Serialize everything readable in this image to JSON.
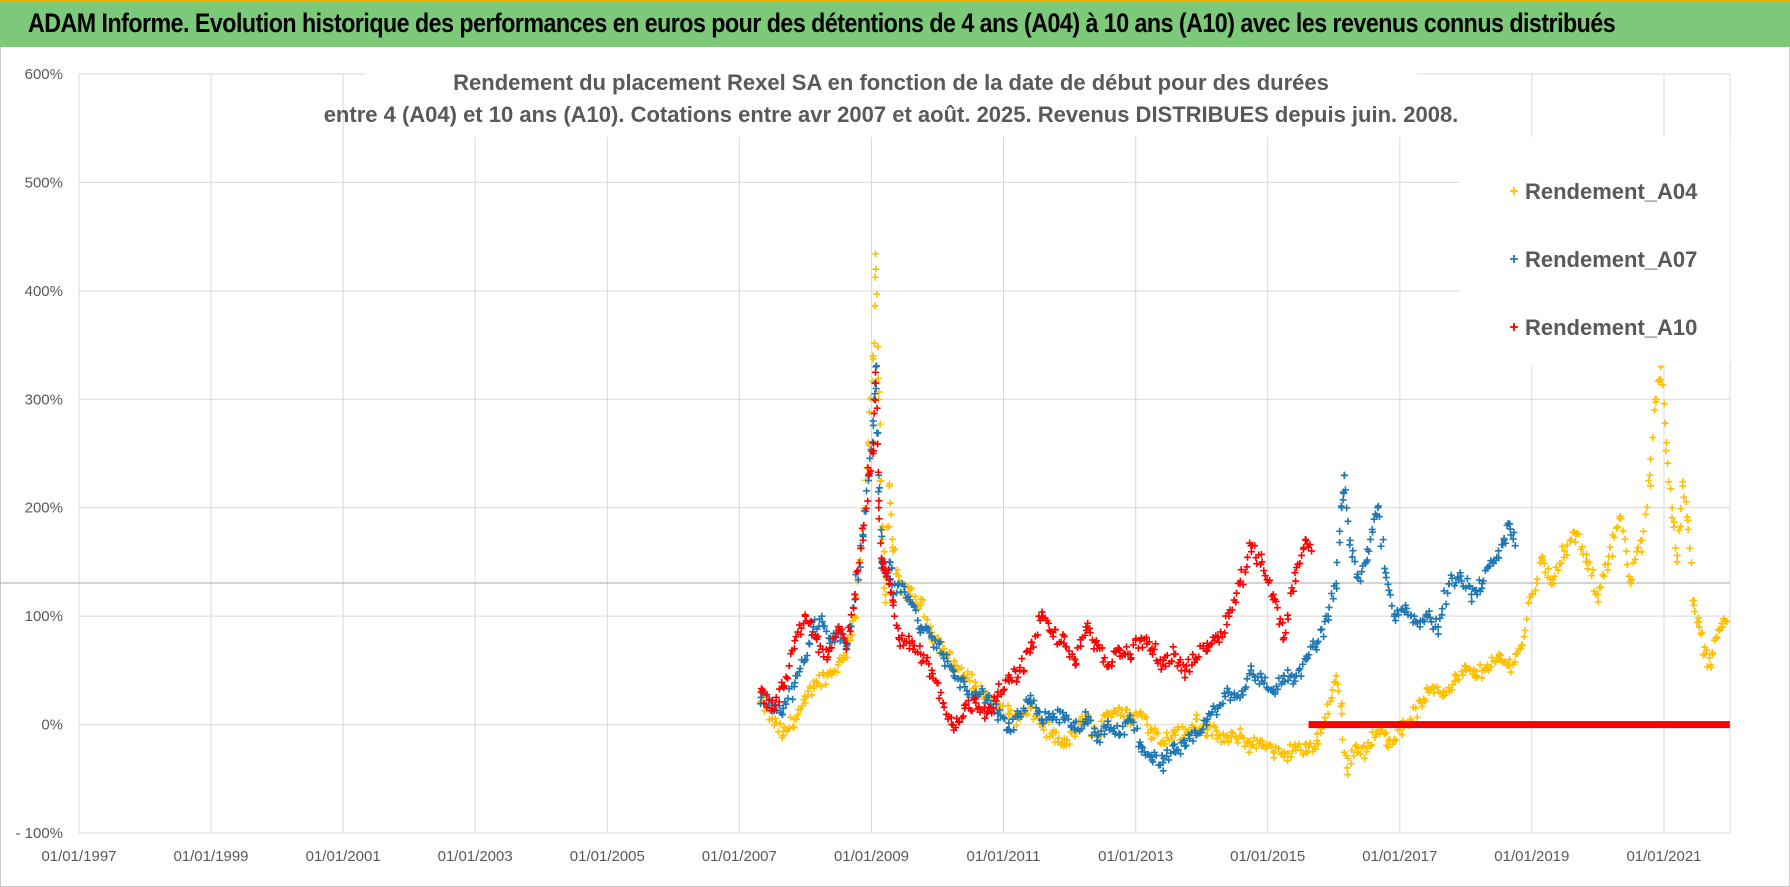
{
  "banner": {
    "title": "ADAM Informe. Evolution historique des performances en euros pour des détentions de 4 ans (A04) à 10 ans (A10) avec les revenus connus distribués"
  },
  "chart_data": {
    "type": "scatter",
    "title_lines": [
      "Rendement du placement Rexel SA en fonction de la date de début pour des durées",
      "entre 4 (A04) et 10 ans (A10).  Cotations entre avr 2007 et août. 2025. Revenus DISTRIBUES depuis juin. 2008."
    ],
    "x_ticks": [
      "01/01/1997",
      "01/01/1999",
      "01/01/2001",
      "01/01/2003",
      "01/01/2005",
      "01/01/2007",
      "01/01/2009",
      "01/01/2011",
      "01/01/2013",
      "01/01/2015",
      "01/01/2017",
      "01/01/2019",
      "01/01/2021"
    ],
    "y_ticks": [
      "- 100%",
      "0%",
      "100%",
      "200%",
      "300%",
      "400%",
      "500%",
      "600%"
    ],
    "xlim": [
      "01/01/1997",
      "01/01/2022"
    ],
    "ylim": [
      -100,
      600
    ],
    "grid": true,
    "legend_position": "right",
    "series": [
      {
        "name": "Rendement_A04",
        "color": "#ffc000",
        "points": [
          [
            "2007-05-01",
            20
          ],
          [
            "2007-07-01",
            5
          ],
          [
            "2007-09-01",
            -10
          ],
          [
            "2007-11-01",
            5
          ],
          [
            "2008-01-01",
            20
          ],
          [
            "2008-03-01",
            40
          ],
          [
            "2008-05-01",
            45
          ],
          [
            "2008-07-01",
            55
          ],
          [
            "2008-08-15",
            70
          ],
          [
            "2008-10-01",
            100
          ],
          [
            "2008-11-15",
            180
          ],
          [
            "2008-12-15",
            260
          ],
          [
            "2009-01-10",
            340
          ],
          [
            "2009-01-25",
            420
          ],
          [
            "2009-02-10",
            300
          ],
          [
            "2009-03-01",
            180
          ],
          [
            "2009-03-20",
            120
          ],
          [
            "2009-04-10",
            220
          ],
          [
            "2009-05-01",
            160
          ],
          [
            "2009-06-01",
            130
          ],
          [
            "2009-08-01",
            120
          ],
          [
            "2009-10-01",
            110
          ],
          [
            "2009-12-01",
            85
          ],
          [
            "2010-02-01",
            70
          ],
          [
            "2010-04-01",
            55
          ],
          [
            "2010-06-01",
            45
          ],
          [
            "2010-08-01",
            35
          ],
          [
            "2010-10-01",
            25
          ],
          [
            "2010-12-01",
            15
          ],
          [
            "2011-02-01",
            10
          ],
          [
            "2011-04-01",
            5
          ],
          [
            "2011-06-01",
            15
          ],
          [
            "2011-08-01",
            0
          ],
          [
            "2011-10-01",
            -10
          ],
          [
            "2011-12-01",
            -20
          ],
          [
            "2012-02-01",
            -5
          ],
          [
            "2012-04-01",
            5
          ],
          [
            "2012-06-01",
            -10
          ],
          [
            "2012-08-01",
            10
          ],
          [
            "2012-10-01",
            15
          ],
          [
            "2012-12-01",
            5
          ],
          [
            "2013-02-01",
            10
          ],
          [
            "2013-04-01",
            -5
          ],
          [
            "2013-06-01",
            -15
          ],
          [
            "2013-08-01",
            -5
          ],
          [
            "2013-10-01",
            -10
          ],
          [
            "2013-12-01",
            5
          ],
          [
            "2014-02-01",
            -5
          ],
          [
            "2014-04-01",
            -10
          ],
          [
            "2014-06-01",
            -15
          ],
          [
            "2014-08-01",
            -10
          ],
          [
            "2014-10-01",
            -20
          ],
          [
            "2014-12-01",
            -15
          ],
          [
            "2015-02-01",
            -25
          ],
          [
            "2015-04-01",
            -30
          ],
          [
            "2015-06-01",
            -20
          ],
          [
            "2015-08-01",
            -25
          ],
          [
            "2015-10-01",
            -15
          ],
          [
            "2015-12-01",
            10
          ],
          [
            "2016-01-15",
            45
          ],
          [
            "2016-02-15",
            10
          ],
          [
            "2016-03-15",
            -40
          ],
          [
            "2016-05-01",
            -20
          ],
          [
            "2016-07-01",
            -25
          ],
          [
            "2016-09-01",
            -5
          ],
          [
            "2016-11-01",
            -15
          ],
          [
            "2017-01-01",
            -5
          ],
          [
            "2017-03-01",
            5
          ],
          [
            "2017-05-01",
            20
          ],
          [
            "2017-07-01",
            35
          ],
          [
            "2017-09-01",
            30
          ],
          [
            "2017-11-01",
            40
          ],
          [
            "2018-01-01",
            50
          ],
          [
            "2018-03-01",
            45
          ],
          [
            "2018-05-01",
            55
          ],
          [
            "2018-07-01",
            60
          ],
          [
            "2018-09-01",
            55
          ],
          [
            "2018-11-01",
            70
          ],
          [
            "2019-01-01",
            120
          ],
          [
            "2019-03-01",
            155
          ],
          [
            "2019-05-01",
            130
          ],
          [
            "2019-07-01",
            160
          ],
          [
            "2019-09-01",
            175
          ],
          [
            "2019-11-01",
            150
          ],
          [
            "2020-01-01",
            120
          ],
          [
            "2020-03-01",
            155
          ],
          [
            "2020-05-01",
            190
          ],
          [
            "2020-07-01",
            130
          ],
          [
            "2020-09-01",
            170
          ],
          [
            "2020-10-15",
            230
          ],
          [
            "2020-11-15",
            300
          ],
          [
            "2020-12-15",
            330
          ],
          [
            "2021-01-15",
            260
          ],
          [
            "2021-02-15",
            200
          ],
          [
            "2021-03-15",
            150
          ],
          [
            "2021-04-15",
            220
          ],
          [
            "2021-05-15",
            180
          ],
          [
            "2021-06-15",
            110
          ],
          [
            "2021-07-15",
            90
          ],
          [
            "2021-08-15",
            65
          ],
          [
            "2021-09-15",
            55
          ],
          [
            "2021-10-15",
            80
          ],
          [
            "2021-11-15",
            90
          ],
          [
            "2021-12-15",
            95
          ]
        ]
      },
      {
        "name": "Rendement_A07",
        "color": "#1f77b4",
        "points": [
          [
            "2007-05-01",
            25
          ],
          [
            "2007-07-01",
            20
          ],
          [
            "2007-09-01",
            15
          ],
          [
            "2007-11-01",
            35
          ],
          [
            "2008-01-01",
            60
          ],
          [
            "2008-02-15",
            90
          ],
          [
            "2008-04-01",
            100
          ],
          [
            "2008-05-15",
            75
          ],
          [
            "2008-07-01",
            85
          ],
          [
            "2008-08-15",
            70
          ],
          [
            "2008-10-01",
            120
          ],
          [
            "2008-11-15",
            175
          ],
          [
            "2008-12-15",
            225
          ],
          [
            "2009-01-10",
            280
          ],
          [
            "2009-01-25",
            330
          ],
          [
            "2009-02-10",
            230
          ],
          [
            "2009-03-01",
            150
          ],
          [
            "2009-03-20",
            140
          ],
          [
            "2009-04-10",
            150
          ],
          [
            "2009-05-01",
            120
          ],
          [
            "2009-06-01",
            130
          ],
          [
            "2009-08-01",
            115
          ],
          [
            "2009-10-01",
            90
          ],
          [
            "2009-12-01",
            80
          ],
          [
            "2010-02-01",
            65
          ],
          [
            "2010-04-01",
            45
          ],
          [
            "2010-06-01",
            35
          ],
          [
            "2010-08-01",
            30
          ],
          [
            "2010-10-01",
            25
          ],
          [
            "2010-12-01",
            10
          ],
          [
            "2011-02-01",
            -5
          ],
          [
            "2011-04-01",
            10
          ],
          [
            "2011-06-01",
            20
          ],
          [
            "2011-08-01",
            5
          ],
          [
            "2011-10-01",
            10
          ],
          [
            "2011-12-01",
            5
          ],
          [
            "2012-02-01",
            -5
          ],
          [
            "2012-04-01",
            5
          ],
          [
            "2012-06-01",
            -15
          ],
          [
            "2012-08-01",
            0
          ],
          [
            "2012-10-01",
            -10
          ],
          [
            "2012-12-01",
            5
          ],
          [
            "2013-02-01",
            -20
          ],
          [
            "2013-04-01",
            -30
          ],
          [
            "2013-06-01",
            -35
          ],
          [
            "2013-08-01",
            -25
          ],
          [
            "2013-10-01",
            -20
          ],
          [
            "2013-12-01",
            -10
          ],
          [
            "2014-02-01",
            5
          ],
          [
            "2014-04-01",
            15
          ],
          [
            "2014-06-01",
            30
          ],
          [
            "2014-08-01",
            25
          ],
          [
            "2014-10-01",
            50
          ],
          [
            "2014-12-01",
            40
          ],
          [
            "2015-02-01",
            30
          ],
          [
            "2015-04-01",
            45
          ],
          [
            "2015-06-01",
            40
          ],
          [
            "2015-08-01",
            60
          ],
          [
            "2015-10-01",
            75
          ],
          [
            "2015-12-01",
            100
          ],
          [
            "2016-01-15",
            130
          ],
          [
            "2016-02-15",
            200
          ],
          [
            "2016-03-01",
            230
          ],
          [
            "2016-04-01",
            170
          ],
          [
            "2016-05-15",
            135
          ],
          [
            "2016-07-01",
            150
          ],
          [
            "2016-08-01",
            180
          ],
          [
            "2016-09-01",
            200
          ],
          [
            "2016-10-15",
            140
          ],
          [
            "2016-12-01",
            100
          ],
          [
            "2017-02-01",
            110
          ],
          [
            "2017-04-01",
            95
          ],
          [
            "2017-06-01",
            100
          ],
          [
            "2017-08-01",
            90
          ],
          [
            "2017-10-01",
            130
          ],
          [
            "2017-12-01",
            140
          ],
          [
            "2018-02-01",
            120
          ],
          [
            "2018-04-01",
            130
          ],
          [
            "2018-06-01",
            150
          ],
          [
            "2018-08-01",
            170
          ],
          [
            "2018-09-01",
            185
          ],
          [
            "2018-10-01",
            165
          ]
        ]
      },
      {
        "name": "Rendement_A10",
        "color": "#ff0000",
        "points": [
          [
            "2007-05-01",
            30
          ],
          [
            "2007-07-01",
            15
          ],
          [
            "2007-09-01",
            35
          ],
          [
            "2007-11-01",
            70
          ],
          [
            "2008-01-01",
            100
          ],
          [
            "2008-03-01",
            80
          ],
          [
            "2008-05-01",
            60
          ],
          [
            "2008-07-01",
            90
          ],
          [
            "2008-08-15",
            75
          ],
          [
            "2008-10-01",
            120
          ],
          [
            "2008-11-15",
            170
          ],
          [
            "2008-12-15",
            230
          ],
          [
            "2009-01-10",
            250
          ],
          [
            "2009-01-25",
            315
          ],
          [
            "2009-02-10",
            200
          ],
          [
            "2009-03-01",
            150
          ],
          [
            "2009-03-20",
            140
          ],
          [
            "2009-04-10",
            130
          ],
          [
            "2009-05-01",
            110
          ],
          [
            "2009-06-01",
            80
          ],
          [
            "2009-08-01",
            75
          ],
          [
            "2009-10-01",
            65
          ],
          [
            "2009-12-01",
            50
          ],
          [
            "2010-02-01",
            20
          ],
          [
            "2010-04-01",
            -5
          ],
          [
            "2010-06-01",
            15
          ],
          [
            "2010-08-01",
            20
          ],
          [
            "2010-10-01",
            10
          ],
          [
            "2010-12-01",
            30
          ],
          [
            "2011-02-01",
            40
          ],
          [
            "2011-04-01",
            50
          ],
          [
            "2011-06-01",
            70
          ],
          [
            "2011-08-01",
            100
          ],
          [
            "2011-10-01",
            85
          ],
          [
            "2011-12-01",
            75
          ],
          [
            "2012-02-01",
            60
          ],
          [
            "2012-04-01",
            90
          ],
          [
            "2012-06-01",
            70
          ],
          [
            "2012-08-01",
            55
          ],
          [
            "2012-10-01",
            70
          ],
          [
            "2012-12-01",
            65
          ],
          [
            "2013-02-01",
            80
          ],
          [
            "2013-04-01",
            70
          ],
          [
            "2013-06-01",
            55
          ],
          [
            "2013-08-01",
            65
          ],
          [
            "2013-10-01",
            50
          ],
          [
            "2013-12-01",
            60
          ],
          [
            "2014-02-01",
            75
          ],
          [
            "2014-04-01",
            80
          ],
          [
            "2014-06-01",
            100
          ],
          [
            "2014-08-01",
            130
          ],
          [
            "2014-10-01",
            165
          ],
          [
            "2014-12-01",
            150
          ],
          [
            "2015-02-01",
            120
          ],
          [
            "2015-04-01",
            80
          ],
          [
            "2015-06-01",
            140
          ],
          [
            "2015-08-01",
            170
          ],
          [
            "2015-09-01",
            160
          ]
        ]
      }
    ],
    "flat_line": {
      "series": "Rendement_A10",
      "from": "2015-08-15",
      "to": "2021-12-31",
      "value": 0
    }
  }
}
